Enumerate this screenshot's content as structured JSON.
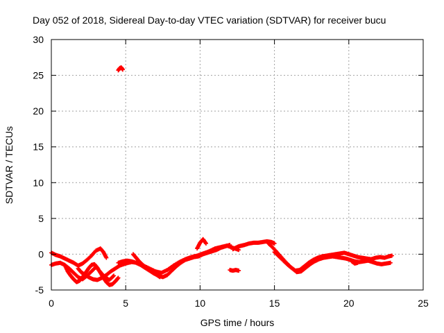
{
  "chart_data": {
    "type": "scatter",
    "title": "Day 052 of 2018, Sidereal Day-to-day VTEC variation (SDTVAR) for receiver bucu",
    "xlabel": "GPS time / hours",
    "ylabel": "SDTVAR / TECUs",
    "xlim": [
      0,
      25
    ],
    "ylim": [
      -5,
      30
    ],
    "xticks": [
      0,
      5,
      10,
      15,
      20,
      25
    ],
    "yticks": [
      -5,
      0,
      5,
      10,
      15,
      20,
      25,
      30
    ],
    "grid": true,
    "series": [
      {
        "name": "SDTVAR",
        "color": "#ff0000",
        "tracks": [
          {
            "x": [
              0.0,
              0.3,
              0.6,
              0.9,
              1.2,
              1.5,
              1.8,
              2.1,
              2.4,
              2.7,
              3.0,
              3.3,
              3.5,
              3.7
            ],
            "y": [
              0.2,
              -0.1,
              -0.3,
              -0.6,
              -0.9,
              -1.2,
              -1.6,
              -1.3,
              -0.8,
              -0.2,
              0.5,
              0.8,
              0.3,
              -0.5
            ]
          },
          {
            "x": [
              0.0,
              0.3,
              0.6,
              0.9,
              1.2,
              1.5,
              1.8,
              2.1,
              2.4,
              2.7,
              3.0,
              3.3,
              3.6,
              3.9,
              4.2
            ],
            "y": [
              -1.5,
              -1.3,
              -1.2,
              -1.5,
              -2.0,
              -2.6,
              -3.2,
              -3.5,
              -3.0,
              -2.4,
              -1.8,
              -2.5,
              -3.2,
              -3.6,
              -3.0
            ]
          },
          {
            "x": [
              0.9,
              1.1,
              1.3,
              1.5,
              1.7,
              1.9,
              2.1,
              2.3,
              2.5,
              2.7,
              2.9,
              3.1,
              3.3,
              3.5,
              3.7,
              3.9,
              4.1,
              4.3,
              4.5
            ],
            "y": [
              -1.5,
              -2.4,
              -3.0,
              -3.5,
              -3.9,
              -3.7,
              -3.2,
              -2.6,
              -2.0,
              -1.5,
              -1.4,
              -1.9,
              -2.6,
              -3.3,
              -3.9,
              -4.3,
              -4.2,
              -3.8,
              -3.3
            ]
          },
          {
            "x": [
              1.8,
              2.0,
              2.2,
              2.5,
              2.8,
              3.1,
              3.4,
              3.7,
              4.0,
              4.3,
              4.6,
              5.0,
              5.4,
              5.8,
              6.2,
              6.6,
              7.0,
              7.4,
              7.8,
              8.2,
              8.6,
              9.0,
              9.4,
              9.8,
              10.2,
              10.6,
              11.0,
              11.4,
              11.8,
              12.2,
              12.6
            ],
            "y": [
              -2.0,
              -2.5,
              -2.8,
              -3.2,
              -3.5,
              -3.6,
              -3.3,
              -2.9,
              -2.4,
              -2.0,
              -1.6,
              -1.3,
              -1.1,
              -1.2,
              -1.6,
              -2.0,
              -2.4,
              -2.6,
              -2.2,
              -1.6,
              -1.1,
              -0.7,
              -0.4,
              -0.2,
              0.1,
              0.4,
              0.8,
              1.0,
              1.2,
              0.9,
              0.6
            ]
          },
          {
            "x": [
              4.5,
              4.8,
              5.1,
              5.4,
              5.7,
              6.0,
              6.3,
              6.6,
              6.9,
              7.2,
              7.5,
              7.8,
              8.1,
              8.4,
              8.7,
              9.0,
              9.3,
              9.6,
              9.9,
              10.2,
              10.5,
              10.8,
              11.1,
              11.4,
              11.7,
              12.0
            ],
            "y": [
              -1.2,
              -1.0,
              -0.9,
              -1.0,
              -1.2,
              -1.5,
              -1.9,
              -2.3,
              -2.7,
              -3.0,
              -3.2,
              -2.9,
              -2.3,
              -1.7,
              -1.2,
              -0.8,
              -0.6,
              -0.4,
              -0.3,
              0.0,
              0.2,
              0.4,
              0.6,
              0.9,
              1.1,
              1.3
            ]
          },
          {
            "x": [
              5.5,
              5.7,
              5.9,
              6.1,
              6.3,
              6.5,
              6.7,
              6.9,
              7.1,
              7.3
            ],
            "y": [
              0.0,
              -0.5,
              -1.0,
              -1.4,
              -1.8,
              -2.1,
              -2.3,
              -2.6,
              -2.9,
              -3.2
            ]
          },
          {
            "x": [
              9.8,
              10.0,
              10.2,
              10.4
            ],
            "y": [
              0.8,
              1.6,
              2.1,
              1.5
            ]
          },
          {
            "x": [
              12.2,
              12.4,
              12.6,
              12.8,
              13.0,
              13.3,
              13.6,
              13.9,
              14.2,
              14.5,
              14.8,
              15.0
            ],
            "y": [
              0.7,
              0.9,
              1.1,
              1.2,
              1.3,
              1.5,
              1.6,
              1.6,
              1.7,
              1.8,
              1.7,
              1.5
            ]
          },
          {
            "x": [
              14.6,
              14.9,
              15.2,
              15.5,
              15.8,
              16.1,
              16.4,
              16.7,
              17.0,
              17.3,
              17.6,
              17.9,
              18.2,
              18.5,
              18.8,
              19.1,
              19.4,
              19.7,
              20.0,
              20.3,
              20.6,
              20.9,
              21.2,
              21.5,
              21.8,
              22.1,
              22.4,
              22.7,
              22.9
            ],
            "y": [
              1.5,
              0.9,
              0.2,
              -0.5,
              -1.2,
              -1.8,
              -2.3,
              -2.2,
              -1.7,
              -1.2,
              -0.8,
              -0.5,
              -0.3,
              -0.2,
              -0.1,
              0.0,
              0.1,
              0.2,
              0.0,
              -0.2,
              -0.4,
              -0.5,
              -0.6,
              -0.7,
              -0.5,
              -0.4,
              -0.5,
              -0.3,
              -0.2
            ]
          },
          {
            "x": [
              15.0,
              15.3,
              15.6,
              15.9,
              16.2,
              16.5,
              16.8,
              17.1,
              17.4,
              17.7,
              18.0,
              18.3,
              18.6,
              18.9,
              19.2,
              19.5,
              19.8,
              20.1,
              20.4,
              20.7,
              21.0,
              21.3,
              21.6,
              21.9,
              22.2,
              22.5,
              22.8
            ],
            "y": [
              0.3,
              -0.3,
              -0.9,
              -1.5,
              -2.0,
              -2.5,
              -2.4,
              -1.9,
              -1.4,
              -1.0,
              -0.7,
              -0.5,
              -0.4,
              -0.3,
              -0.4,
              -0.5,
              -0.6,
              -0.8,
              -1.0,
              -1.1,
              -1.0,
              -0.9,
              -1.1,
              -1.3,
              -1.4,
              -1.3,
              -1.2
            ]
          },
          {
            "x": [
              20.2,
              20.4,
              20.6
            ],
            "y": [
              -1.0,
              -1.3,
              -1.2
            ]
          },
          {
            "x": [
              4.5,
              4.6,
              4.7,
              4.8
            ],
            "y": [
              25.7,
              26.0,
              26.1,
              25.8
            ]
          },
          {
            "x": [
              12.0,
              12.2,
              12.4,
              12.6
            ],
            "y": [
              -2.2,
              -2.3,
              -2.2,
              -2.3
            ]
          }
        ]
      }
    ]
  }
}
